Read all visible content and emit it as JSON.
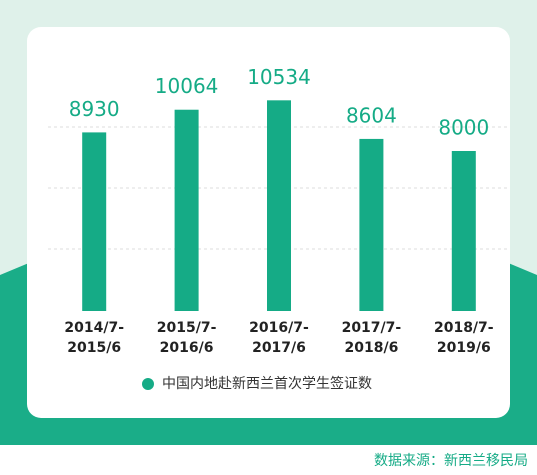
{
  "chart_data": {
    "type": "bar",
    "categories": [
      "2014/7-2015/6",
      "2015/7-2016/6",
      "2016/7-2017/6",
      "2017/7-2018/6",
      "2018/7-2019/6"
    ],
    "series": [
      {
        "name": "中国内地赴新西兰首次学生签证数",
        "color": "#15ab86",
        "values": [
          8930,
          10064,
          10534,
          8604,
          8000
        ]
      }
    ],
    "ylim": [
      0,
      12000
    ],
    "source": "数据来源：新西兰移民局"
  }
}
